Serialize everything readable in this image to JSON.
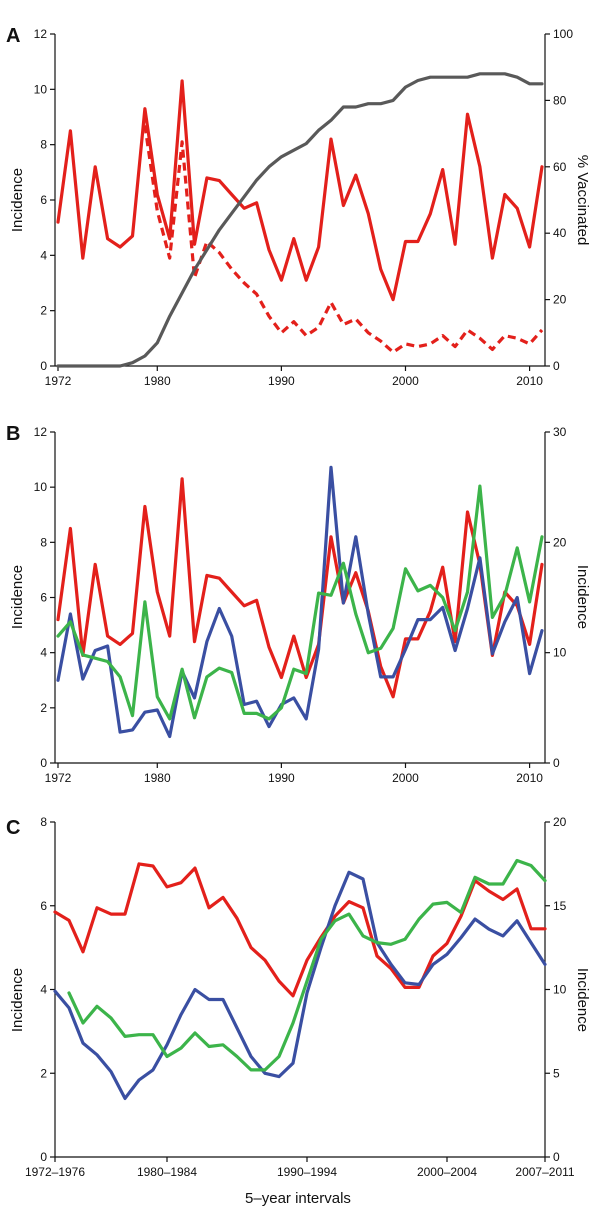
{
  "chart_data": [
    {
      "panel": "A",
      "type": "line",
      "ylabel": "Incidence",
      "y2label": "% Vaccinated",
      "ylim": [
        0,
        12
      ],
      "y2lim": [
        0,
        100
      ],
      "yticks": [
        0,
        2,
        4,
        6,
        8,
        10,
        12
      ],
      "y2ticks": [
        0,
        20,
        40,
        60,
        80,
        100
      ],
      "xlim": [
        1972,
        2011
      ],
      "xticks": [
        1972,
        1980,
        1990,
        2000,
        2010
      ],
      "colors": {
        "red": "#e3201b",
        "gray": "#595959"
      },
      "series": [
        {
          "axis": "left",
          "color": "#e3201b",
          "dash": false,
          "x": [
            1972,
            1973,
            1974,
            1975,
            1976,
            1977,
            1978,
            1979,
            1980,
            1981,
            1982,
            1983,
            1984,
            1985,
            1986,
            1987,
            1988,
            1989,
            1990,
            1991,
            1992,
            1993,
            1994,
            1995,
            1996,
            1997,
            1998,
            1999,
            2000,
            2001,
            2002,
            2003,
            2004,
            2005,
            2006,
            2007,
            2008,
            2009,
            2010,
            2011
          ],
          "values": [
            5.2,
            8.5,
            3.9,
            7.2,
            4.6,
            4.3,
            4.7,
            9.3,
            6.2,
            4.6,
            10.3,
            4.4,
            6.8,
            6.7,
            6.2,
            5.7,
            5.9,
            4.2,
            3.1,
            4.6,
            3.1,
            4.3,
            8.2,
            5.8,
            6.9,
            5.5,
            3.5,
            2.4,
            4.5,
            4.5,
            5.5,
            7.1,
            4.4,
            9.1,
            7.2,
            3.9,
            6.2,
            5.7,
            4.3,
            7.2
          ]
        },
        {
          "axis": "left",
          "color": "#e3201b",
          "dash": true,
          "x": [
            1979,
            1980,
            1981,
            1982,
            1983,
            1984,
            1985,
            1986,
            1987,
            1988,
            1989,
            1990,
            1991,
            1992,
            1993,
            1994,
            1995,
            1996,
            1997,
            1998,
            1999,
            2000,
            2001,
            2002,
            2003,
            2004,
            2005,
            2006,
            2007,
            2008,
            2009,
            2010,
            2011
          ],
          "values": [
            8.7,
            5.6,
            3.9,
            8.1,
            3.2,
            4.5,
            4.1,
            3.5,
            3.0,
            2.6,
            1.8,
            1.2,
            1.6,
            1.1,
            1.4,
            2.3,
            1.5,
            1.7,
            1.2,
            0.9,
            0.5,
            0.8,
            0.7,
            0.8,
            1.1,
            0.7,
            1.3,
            1.0,
            0.6,
            1.1,
            1.0,
            0.8,
            1.3
          ]
        },
        {
          "axis": "right",
          "color": "#595959",
          "dash": false,
          "x": [
            1972,
            1973,
            1974,
            1975,
            1976,
            1977,
            1978,
            1979,
            1980,
            1981,
            1982,
            1983,
            1984,
            1985,
            1986,
            1987,
            1988,
            1989,
            1990,
            1991,
            1992,
            1993,
            1994,
            1995,
            1996,
            1997,
            1998,
            1999,
            2000,
            2001,
            2002,
            2003,
            2004,
            2005,
            2006,
            2007,
            2008,
            2009,
            2010,
            2011
          ],
          "values": [
            0,
            0,
            0,
            0,
            0,
            0,
            1,
            3,
            7,
            15,
            22,
            29,
            35,
            41,
            46,
            51,
            56,
            60,
            63,
            65,
            67,
            71,
            74,
            78,
            78,
            79,
            79,
            80,
            84,
            86,
            87,
            87,
            87,
            87,
            88,
            88,
            88,
            87,
            85,
            85
          ]
        }
      ]
    },
    {
      "panel": "B",
      "type": "line",
      "ylabel": "Incidence",
      "y2label": "Incidence",
      "ylim": [
        0,
        12
      ],
      "y2lim": [
        0,
        30
      ],
      "yticks": [
        0,
        2,
        4,
        6,
        8,
        10,
        12
      ],
      "y2ticks": [
        0,
        10,
        20,
        30
      ],
      "xlim": [
        1972,
        2011
      ],
      "xticks": [
        1972,
        1980,
        1990,
        2000,
        2010
      ],
      "colors": {
        "red": "#e3201b",
        "blue": "#3a4fa2",
        "green": "#3cb44a"
      },
      "series": [
        {
          "axis": "left",
          "color": "#e3201b",
          "dash": false,
          "x": [
            1972,
            1973,
            1974,
            1975,
            1976,
            1977,
            1978,
            1979,
            1980,
            1981,
            1982,
            1983,
            1984,
            1985,
            1986,
            1987,
            1988,
            1989,
            1990,
            1991,
            1992,
            1993,
            1994,
            1995,
            1996,
            1997,
            1998,
            1999,
            2000,
            2001,
            2002,
            2003,
            2004,
            2005,
            2006,
            2007,
            2008,
            2009,
            2010,
            2011
          ],
          "values": [
            5.2,
            8.5,
            3.9,
            7.2,
            4.6,
            4.3,
            4.7,
            9.3,
            6.2,
            4.6,
            10.3,
            4.4,
            6.8,
            6.7,
            6.2,
            5.7,
            5.9,
            4.2,
            3.1,
            4.6,
            3.1,
            4.3,
            8.2,
            5.8,
            6.9,
            5.5,
            3.5,
            2.4,
            4.5,
            4.5,
            5.5,
            7.1,
            4.4,
            9.1,
            7.2,
            3.9,
            6.2,
            5.7,
            4.3,
            7.2
          ]
        },
        {
          "axis": "right",
          "color": "#3a4fa2",
          "dash": false,
          "x": [
            1972,
            1973,
            1974,
            1975,
            1976,
            1977,
            1978,
            1979,
            1980,
            1981,
            1982,
            1983,
            1984,
            1985,
            1986,
            1987,
            1988,
            1989,
            1990,
            1991,
            1992,
            1993,
            1994,
            1995,
            1996,
            1997,
            1998,
            1999,
            2000,
            2001,
            2002,
            2003,
            2004,
            2005,
            2006,
            2007,
            2008,
            2009,
            2010,
            2011
          ],
          "values": [
            7.5,
            13.5,
            7.6,
            10.2,
            10.6,
            2.8,
            3.0,
            4.6,
            4.8,
            2.4,
            8.3,
            5.9,
            11.0,
            14.0,
            11.5,
            5.3,
            5.6,
            3.3,
            5.3,
            5.9,
            4.0,
            10.3,
            26.8,
            14.5,
            20.5,
            13.5,
            7.8,
            7.8,
            10.3,
            13.0,
            13.0,
            14.1,
            10.2,
            14.0,
            18.6,
            9.9,
            12.8,
            15.0,
            8.1,
            12.0
          ]
        },
        {
          "axis": "right",
          "color": "#3cb44a",
          "dash": false,
          "x": [
            1972,
            1973,
            1974,
            1975,
            1976,
            1977,
            1978,
            1979,
            1980,
            1981,
            1982,
            1983,
            1984,
            1985,
            1986,
            1987,
            1988,
            1989,
            1990,
            1991,
            1992,
            1993,
            1994,
            1995,
            1996,
            1997,
            1998,
            1999,
            2000,
            2001,
            2002,
            2003,
            2004,
            2005,
            2006,
            2007,
            2008,
            2009,
            2010,
            2011
          ],
          "values": [
            11.5,
            12.8,
            9.8,
            9.5,
            9.2,
            7.8,
            4.3,
            14.6,
            6.0,
            4.0,
            8.5,
            4.1,
            7.8,
            8.6,
            8.2,
            4.5,
            4.5,
            4.0,
            5.0,
            8.5,
            8.1,
            15.4,
            15.2,
            18.1,
            13.5,
            10.0,
            10.4,
            12.2,
            17.6,
            15.6,
            16.1,
            15.0,
            12.0,
            15.5,
            25.1,
            13.2,
            15.2,
            19.5,
            14.6,
            20.5
          ]
        }
      ]
    },
    {
      "panel": "C",
      "type": "line",
      "xlabel": "5–year intervals",
      "ylabel": "Incidence",
      "y2label": "Incidence",
      "ylim": [
        0,
        8
      ],
      "y2lim": [
        0,
        20
      ],
      "yticks": [
        0,
        2,
        4,
        6,
        8
      ],
      "y2ticks": [
        0,
        5,
        10,
        15,
        20
      ],
      "xlim": [
        1974,
        2009
      ],
      "xticks": [
        {
          "pos": 1974,
          "label": "1972–1976"
        },
        {
          "pos": 1982,
          "label": "1980–1984"
        },
        {
          "pos": 1992,
          "label": "1990–1994"
        },
        {
          "pos": 2002,
          "label": "2000–2004"
        },
        {
          "pos": 2009,
          "label": "2007–2011"
        }
      ],
      "colors": {
        "red": "#e3201b",
        "blue": "#3a4fa2",
        "green": "#3cb44a"
      },
      "series": [
        {
          "axis": "left",
          "color": "#e3201b",
          "dash": false,
          "x": [
            1974,
            1975,
            1976,
            1977,
            1978,
            1979,
            1980,
            1981,
            1982,
            1983,
            1984,
            1985,
            1986,
            1987,
            1988,
            1989,
            1990,
            1991,
            1992,
            1993,
            1994,
            1995,
            1996,
            1997,
            1998,
            1999,
            2000,
            2001,
            2002,
            2003,
            2004,
            2005,
            2006,
            2007,
            2008,
            2009
          ],
          "values": [
            5.85,
            5.65,
            4.9,
            5.95,
            5.8,
            5.8,
            7.0,
            6.95,
            6.45,
            6.55,
            6.9,
            5.95,
            6.2,
            5.7,
            5.0,
            4.7,
            4.2,
            3.85,
            4.7,
            5.25,
            5.75,
            6.1,
            5.95,
            4.8,
            4.5,
            4.05,
            4.05,
            4.8,
            5.1,
            5.75,
            6.6,
            6.35,
            6.15,
            6.4,
            5.45,
            5.45
          ]
        },
        {
          "axis": "right",
          "color": "#3a4fa2",
          "dash": false,
          "x": [
            1974,
            1975,
            1976,
            1977,
            1978,
            1979,
            1980,
            1981,
            1982,
            1983,
            1984,
            1985,
            1986,
            1987,
            1988,
            1989,
            1990,
            1991,
            1992,
            1993,
            1994,
            1995,
            1996,
            1997,
            1998,
            1999,
            2000,
            2001,
            2002,
            2003,
            2004,
            2005,
            2006,
            2007,
            2008,
            2009
          ],
          "values": [
            9.9,
            8.9,
            6.8,
            6.1,
            5.1,
            3.5,
            4.6,
            5.2,
            6.7,
            8.5,
            10.0,
            9.4,
            9.4,
            7.7,
            6.0,
            5.0,
            4.8,
            5.6,
            9.8,
            12.5,
            15.0,
            17.0,
            16.6,
            12.8,
            11.5,
            10.4,
            10.3,
            11.5,
            12.1,
            13.1,
            14.2,
            13.6,
            13.2,
            14.1,
            12.8,
            11.5
          ]
        },
        {
          "axis": "right",
          "color": "#3cb44a",
          "dash": false,
          "x": [
            1975,
            1976,
            1977,
            1978,
            1979,
            1980,
            1981,
            1982,
            1983,
            1984,
            1985,
            1986,
            1987,
            1988,
            1989,
            1990,
            1991,
            1992,
            1993,
            1994,
            1995,
            1996,
            1997,
            1998,
            1999,
            2000,
            2001,
            2002,
            2003,
            2004,
            2005,
            2006,
            2007,
            2008,
            2009
          ],
          "values": [
            9.8,
            8.0,
            9.0,
            8.3,
            7.2,
            7.3,
            7.3,
            6.0,
            6.5,
            7.4,
            6.6,
            6.7,
            6.0,
            5.2,
            5.2,
            6.0,
            8.0,
            10.5,
            13.0,
            14.1,
            14.5,
            13.2,
            12.8,
            12.7,
            13.0,
            14.2,
            15.1,
            15.2,
            14.6,
            16.7,
            16.3,
            16.3,
            17.7,
            17.4,
            16.5
          ]
        }
      ]
    }
  ],
  "panels": {
    "a": {
      "letter": "A",
      "ylabel": "Incidence",
      "y2label": "% Vaccinated"
    },
    "b": {
      "letter": "B",
      "ylabel": "Incidence",
      "y2label": "Incidence"
    },
    "c": {
      "letter": "C",
      "ylabel": "Incidence",
      "y2label": "Incidence",
      "xlabel": "5–year intervals"
    }
  }
}
